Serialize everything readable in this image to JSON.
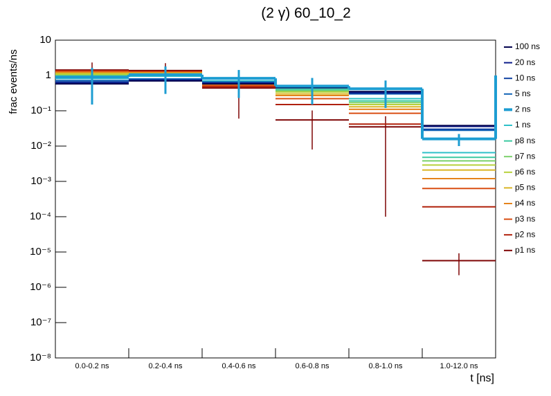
{
  "chart_data": {
    "type": "step",
    "title": "(2 γ) 60_10_2",
    "y_label": "frac events/ns",
    "x_label": "t [ns]",
    "log_y": true,
    "legend": "right",
    "categories": [
      "0.0-0.2 ns",
      "0.2-0.4 ns",
      "0.4-0.6 ns",
      "0.6-0.8 ns",
      "0.8-1.0 ns",
      "1.0-12.0 ns"
    ],
    "ylim": [
      1e-08,
      10
    ],
    "yticks": [
      {
        "value": 1e-08,
        "label": "10⁻⁸"
      },
      {
        "value": 1e-07,
        "label": "10⁻⁷"
      },
      {
        "value": 1e-06,
        "label": "10⁻⁶"
      },
      {
        "value": 1e-05,
        "label": "10⁻⁵"
      },
      {
        "value": 0.0001,
        "label": "10⁻⁴"
      },
      {
        "value": 0.001,
        "label": "10⁻³"
      },
      {
        "value": 0.01,
        "label": "10⁻²"
      },
      {
        "value": 0.1,
        "label": "10⁻¹"
      },
      1,
      10
    ],
    "series": [
      {
        "name": "100 ns",
        "color": "#03034e",
        "values": [
          0.58,
          0.7,
          0.58,
          0.45,
          0.35,
          0.038
        ]
      },
      {
        "name": "20 ns",
        "color": "#0b1b8a",
        "values": [
          0.62,
          0.72,
          0.6,
          0.46,
          0.33,
          0.036
        ]
      },
      {
        "name": "10 ns",
        "color": "#0d3fa0",
        "values": [
          0.66,
          0.75,
          0.62,
          0.47,
          0.31,
          0.03
        ]
      },
      {
        "name": "5 ns",
        "color": "#1164b6",
        "values": [
          0.72,
          0.8,
          0.65,
          0.48,
          0.3,
          0.028
        ]
      },
      {
        "name": "2 ns",
        "color": "#1d9dd2",
        "thick": true,
        "values": [
          0.9,
          1.05,
          0.83,
          0.5,
          0.42,
          0.016
        ],
        "errors": [
          0.75,
          0.75,
          0.6,
          0.35,
          0.3,
          0.006
        ]
      },
      {
        "name": "1 ns",
        "color": "#2cc0c8",
        "values": [
          0.82,
          0.95,
          0.7,
          0.44,
          0.22,
          0.0065
        ]
      },
      {
        "name": "p8 ns",
        "color": "#3ac9a0",
        "values": [
          0.95,
          1.0,
          0.68,
          0.4,
          0.19,
          0.0048
        ]
      },
      {
        "name": "p7 ns",
        "color": "#7bd06a",
        "values": [
          1.0,
          1.05,
          0.66,
          0.37,
          0.17,
          0.0038
        ]
      },
      {
        "name": "p6 ns",
        "color": "#b7d13a",
        "values": [
          1.08,
          1.1,
          0.64,
          0.34,
          0.15,
          0.0029
        ]
      },
      {
        "name": "p5 ns",
        "color": "#d9b524",
        "values": [
          1.15,
          1.15,
          0.6,
          0.3,
          0.13,
          0.0021
        ]
      },
      {
        "name": "p4 ns",
        "color": "#e5831c",
        "values": [
          1.22,
          1.2,
          0.56,
          0.27,
          0.11,
          0.0012
        ]
      },
      {
        "name": "p3 ns",
        "color": "#d94e12",
        "values": [
          1.3,
          1.25,
          0.52,
          0.22,
          0.085,
          0.00063
        ]
      },
      {
        "name": "p2 ns",
        "color": "#b0200a",
        "values": [
          1.36,
          1.3,
          0.48,
          0.15,
          0.042,
          0.00019
        ]
      },
      {
        "name": "p1 ns",
        "color": "#7d0303",
        "values": [
          1.43,
          1.38,
          0.44,
          0.055,
          0.035,
          5.7e-06
        ],
        "errors": [
          0.9,
          0.85,
          0.38,
          0.047,
          0.0349,
          3.5e-06
        ]
      }
    ]
  }
}
